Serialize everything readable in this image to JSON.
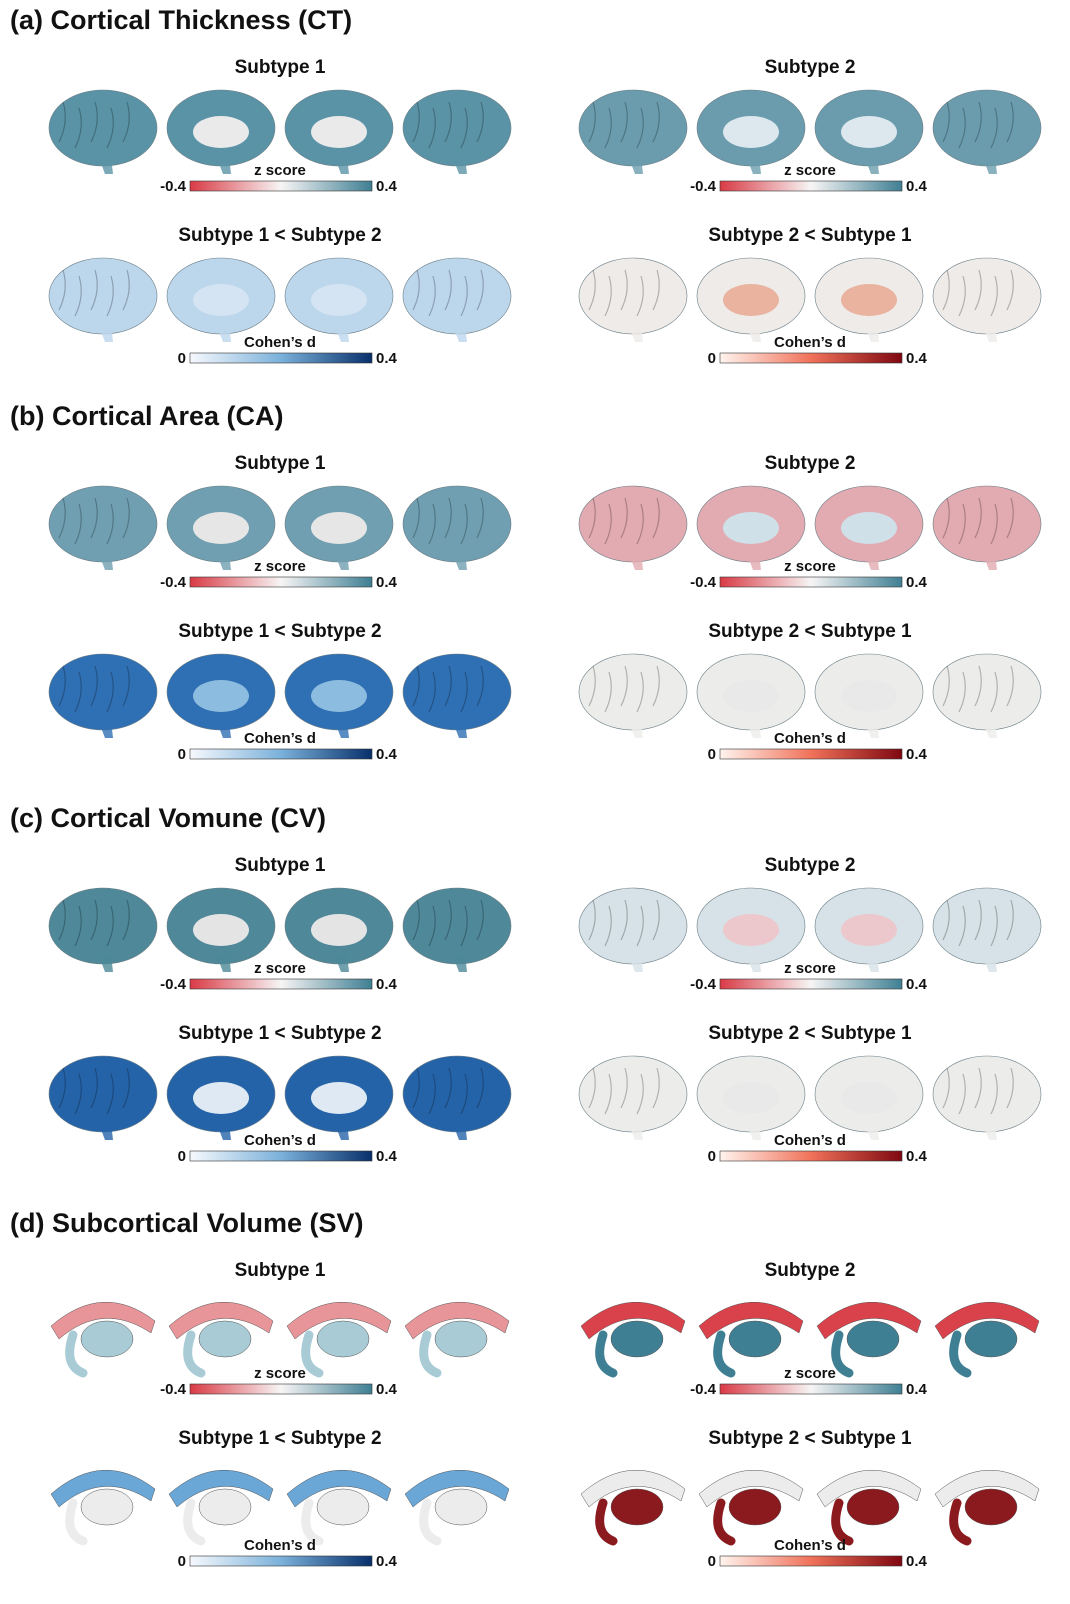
{
  "sections": [
    {
      "title": "(a) Cortical Thickness (CT)",
      "panels": [
        {
          "title": "Subtype 1",
          "scale_label": "z score",
          "min_label": "-0.4",
          "max_label": "0.4"
        },
        {
          "title": "Subtype 2",
          "scale_label": "z score",
          "min_label": "-0.4",
          "max_label": "0.4"
        },
        {
          "title": "Subtype 1 < Subtype 2",
          "scale_label": "Cohen’s d",
          "min_label": "0",
          "max_label": "0.4"
        },
        {
          "title": "Subtype 2 < Subtype 1",
          "scale_label": "Cohen’s d",
          "min_label": "0",
          "max_label": "0.4"
        }
      ]
    },
    {
      "title": "(b) Cortical Area (CA)",
      "panels": [
        {
          "title": "Subtype 1",
          "scale_label": "z score",
          "min_label": "-0.4",
          "max_label": "0.4"
        },
        {
          "title": "Subtype 2",
          "scale_label": "z score",
          "min_label": "-0.4",
          "max_label": "0.4"
        },
        {
          "title": "Subtype 1 < Subtype 2",
          "scale_label": "Cohen’s d",
          "min_label": "0",
          "max_label": "0.4"
        },
        {
          "title": "Subtype 2 < Subtype 1",
          "scale_label": "Cohen’s d",
          "min_label": "0",
          "max_label": "0.4"
        }
      ]
    },
    {
      "title": "(c) Cortical Vomune (CV)",
      "panels": [
        {
          "title": "Subtype 1",
          "scale_label": "z score",
          "min_label": "-0.4",
          "max_label": "0.4"
        },
        {
          "title": "Subtype 2",
          "scale_label": "z score",
          "min_label": "-0.4",
          "max_label": "0.4"
        },
        {
          "title": "Subtype 1 < Subtype 2",
          "scale_label": "Cohen’s d",
          "min_label": "0",
          "max_label": "0.4"
        },
        {
          "title": "Subtype 2 < Subtype 1",
          "scale_label": "Cohen’s d",
          "min_label": "0",
          "max_label": "0.4"
        }
      ]
    },
    {
      "title": "(d) Subcortical Volume (SV)",
      "panels": [
        {
          "title": "Subtype 1",
          "scale_label": "z score",
          "min_label": "-0.4",
          "max_label": "0.4"
        },
        {
          "title": "Subtype 2",
          "scale_label": "z score",
          "min_label": "-0.4",
          "max_label": "0.4"
        },
        {
          "title": "Subtype 1 < Subtype 2",
          "scale_label": "Cohen’s d",
          "min_label": "0",
          "max_label": "0.4"
        },
        {
          "title": "Subtype 2 < Subtype 1",
          "scale_label": "Cohen’s d",
          "min_label": "0",
          "max_label": "0.4"
        }
      ]
    }
  ]
}
